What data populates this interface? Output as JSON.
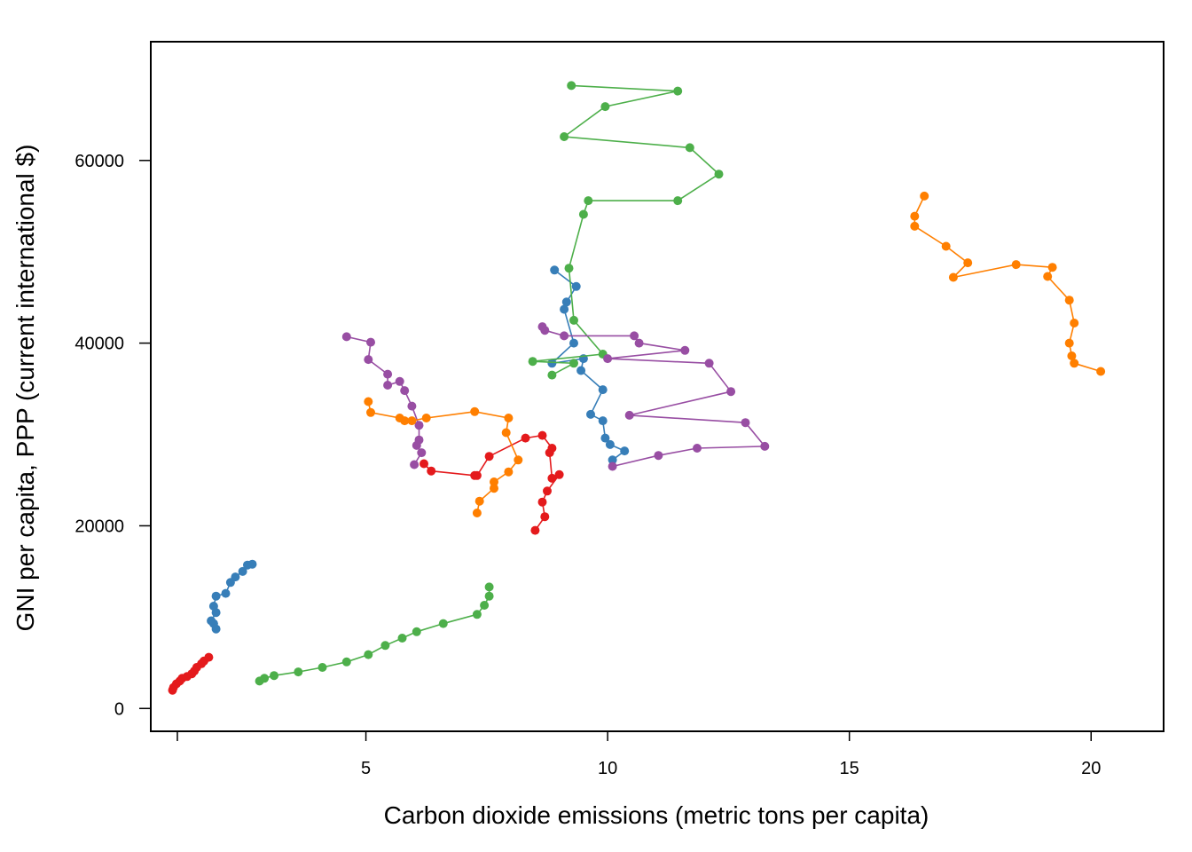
{
  "chart_data": {
    "type": "scatter",
    "title": "",
    "xlabel": "Carbon dioxide emissions (metric tons per capita)",
    "ylabel": "GNI per capita, PPP (current international $)",
    "xlim": [
      0.55,
      21.5
    ],
    "ylim": [
      -2500,
      73000
    ],
    "xticks": [
      5,
      10,
      15,
      20
    ],
    "xtick_extra": [
      1.1
    ],
    "yticks": [
      0,
      20000,
      40000,
      60000
    ],
    "grid": false,
    "legend": "none",
    "series": [
      {
        "color": "#e41a1c",
        "points": [
          [
            1.0,
            2000
          ],
          [
            1.02,
            2300
          ],
          [
            1.08,
            2700
          ],
          [
            1.15,
            3000
          ],
          [
            1.2,
            3300
          ],
          [
            1.3,
            3500
          ],
          [
            1.4,
            3800
          ],
          [
            1.45,
            4100
          ],
          [
            1.5,
            4500
          ],
          [
            1.6,
            4900
          ],
          [
            1.65,
            5200
          ],
          [
            1.75,
            5600
          ]
        ]
      },
      {
        "color": "#e41a1c",
        "points": [
          [
            6.2,
            26800
          ],
          [
            6.35,
            26000
          ],
          [
            7.25,
            25500
          ],
          [
            7.3,
            25500
          ],
          [
            7.55,
            27600
          ],
          [
            8.3,
            29600
          ],
          [
            8.65,
            29900
          ],
          [
            8.85,
            28500
          ],
          [
            8.8,
            28000
          ],
          [
            8.85,
            25200
          ],
          [
            9.0,
            25600
          ],
          [
            8.75,
            23800
          ],
          [
            8.65,
            22600
          ],
          [
            8.7,
            21000
          ],
          [
            8.5,
            19500
          ]
        ]
      },
      {
        "color": "#377eb8",
        "points": [
          [
            1.9,
            8700
          ],
          [
            1.85,
            9300
          ],
          [
            1.8,
            9600
          ],
          [
            1.9,
            10500
          ],
          [
            1.85,
            11200
          ],
          [
            1.9,
            12300
          ],
          [
            2.1,
            12600
          ],
          [
            2.2,
            13800
          ],
          [
            2.3,
            14400
          ],
          [
            2.45,
            15000
          ],
          [
            2.55,
            15700
          ],
          [
            2.65,
            15800
          ]
        ]
      },
      {
        "color": "#377eb8",
        "points": [
          [
            8.9,
            48000
          ],
          [
            9.35,
            46200
          ],
          [
            9.15,
            44500
          ],
          [
            9.1,
            43700
          ],
          [
            9.3,
            40000
          ],
          [
            8.85,
            37800
          ],
          [
            9.5,
            38300
          ],
          [
            9.45,
            37000
          ],
          [
            9.9,
            34900
          ],
          [
            9.65,
            32200
          ],
          [
            9.9,
            31500
          ],
          [
            9.95,
            29600
          ],
          [
            10.05,
            28900
          ],
          [
            10.35,
            28200
          ],
          [
            10.1,
            27200
          ]
        ]
      },
      {
        "color": "#4daf4a",
        "points": [
          [
            2.8,
            3000
          ],
          [
            2.9,
            3300
          ],
          [
            3.1,
            3600
          ],
          [
            3.6,
            4000
          ],
          [
            4.1,
            4500
          ],
          [
            4.6,
            5100
          ],
          [
            5.05,
            5900
          ],
          [
            5.4,
            6900
          ],
          [
            5.75,
            7700
          ],
          [
            6.05,
            8400
          ],
          [
            6.6,
            9300
          ],
          [
            7.3,
            10300
          ],
          [
            7.45,
            11300
          ],
          [
            7.55,
            12300
          ],
          [
            7.55,
            13300
          ]
        ]
      },
      {
        "color": "#4daf4a",
        "points": [
          [
            8.85,
            36500
          ],
          [
            9.3,
            37800
          ],
          [
            8.45,
            38000
          ],
          [
            9.9,
            38800
          ],
          [
            9.3,
            42500
          ],
          [
            9.2,
            48200
          ],
          [
            9.5,
            54100
          ],
          [
            9.6,
            55600
          ],
          [
            11.45,
            55600
          ],
          [
            12.3,
            58500
          ],
          [
            11.7,
            61400
          ],
          [
            9.1,
            62600
          ],
          [
            9.95,
            65900
          ],
          [
            11.45,
            67600
          ],
          [
            9.25,
            68200
          ]
        ]
      },
      {
        "color": "#984ea3",
        "points": [
          [
            4.6,
            40700
          ],
          [
            5.1,
            40100
          ],
          [
            5.05,
            38200
          ],
          [
            5.45,
            36600
          ],
          [
            5.45,
            35400
          ],
          [
            5.7,
            35800
          ],
          [
            5.8,
            34800
          ],
          [
            5.95,
            33100
          ],
          [
            6.1,
            31000
          ],
          [
            6.1,
            29400
          ],
          [
            6.05,
            28800
          ],
          [
            6.15,
            28000
          ],
          [
            6.0,
            26700
          ]
        ]
      },
      {
        "color": "#984ea3",
        "points": [
          [
            8.65,
            41800
          ],
          [
            8.7,
            41400
          ],
          [
            9.1,
            40800
          ],
          [
            10.55,
            40800
          ],
          [
            10.65,
            40000
          ],
          [
            11.6,
            39200
          ],
          [
            10.0,
            38300
          ],
          [
            12.1,
            37800
          ],
          [
            12.55,
            34700
          ],
          [
            10.45,
            32100
          ],
          [
            12.85,
            31300
          ],
          [
            13.25,
            28700
          ],
          [
            11.85,
            28500
          ],
          [
            11.05,
            27700
          ],
          [
            10.1,
            26500
          ]
        ]
      },
      {
        "color": "#ff7f00",
        "points": [
          [
            5.05,
            33600
          ],
          [
            5.1,
            32400
          ],
          [
            5.7,
            31800
          ],
          [
            5.8,
            31500
          ],
          [
            5.95,
            31500
          ],
          [
            6.25,
            31800
          ],
          [
            7.25,
            32500
          ],
          [
            7.95,
            31800
          ],
          [
            7.9,
            30200
          ],
          [
            8.15,
            27200
          ],
          [
            7.95,
            25900
          ],
          [
            7.65,
            24800
          ],
          [
            7.65,
            24100
          ],
          [
            7.35,
            22700
          ],
          [
            7.3,
            21400
          ]
        ]
      },
      {
        "color": "#ff7f00",
        "points": [
          [
            16.55,
            56100
          ],
          [
            16.35,
            53900
          ],
          [
            16.35,
            52800
          ],
          [
            17.0,
            50600
          ],
          [
            17.45,
            48800
          ],
          [
            17.15,
            47200
          ],
          [
            18.45,
            48600
          ],
          [
            19.2,
            48300
          ],
          [
            19.1,
            47300
          ],
          [
            19.55,
            44700
          ],
          [
            19.65,
            42200
          ],
          [
            19.55,
            40000
          ],
          [
            19.6,
            38600
          ],
          [
            19.65,
            37800
          ],
          [
            20.2,
            36900
          ]
        ]
      }
    ]
  }
}
